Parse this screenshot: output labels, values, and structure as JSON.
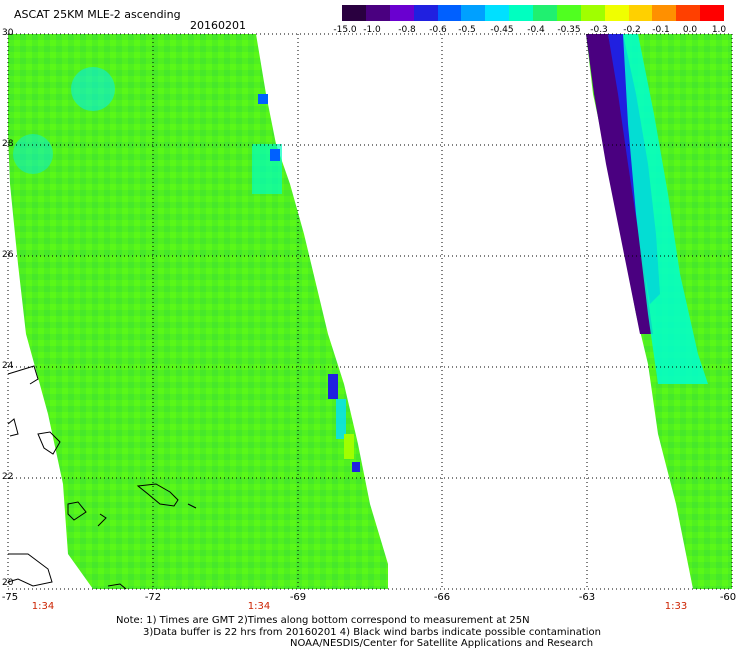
{
  "header": {
    "title": "ASCAT 25KM MLE-2 ascending",
    "date": "20160201"
  },
  "colorbar": {
    "labels": [
      "-15.0",
      "-1.0",
      "-0.8",
      "-0.6",
      "-0.5",
      "-0.45",
      "-0.4",
      "-0.35",
      "-0.3",
      "-0.2",
      "-0.1",
      "0.0",
      "1.0"
    ],
    "colors": [
      "#2a0040",
      "#4a0080",
      "#6a00d0",
      "#2020e0",
      "#0060ff",
      "#00a0ff",
      "#00e0ff",
      "#00ffc0",
      "#20f070",
      "#50ff20",
      "#a0ff00",
      "#f0ff00",
      "#ffd000",
      "#ff9000",
      "#ff4000",
      "#ff0000"
    ]
  },
  "map": {
    "lat_labels": [
      "30",
      "28",
      "26",
      "24",
      "22",
      "20"
    ],
    "lon_labels": [
      "-75",
      "-72",
      "-69",
      "-66",
      "-63",
      "-60"
    ],
    "time_labels": [
      "1:34",
      "1:34",
      "1:33"
    ]
  },
  "footer": {
    "note_line1": "Note: 1) Times are GMT 2)Times along bottom correspond to measurement at 25N",
    "note_line2": "3)Data buffer is 22 hrs from 20160201 4) Black wind barbs indicate possible contamination",
    "note_line3": "NOAA/NESDIS/Center for Satellite Applications and Research"
  }
}
